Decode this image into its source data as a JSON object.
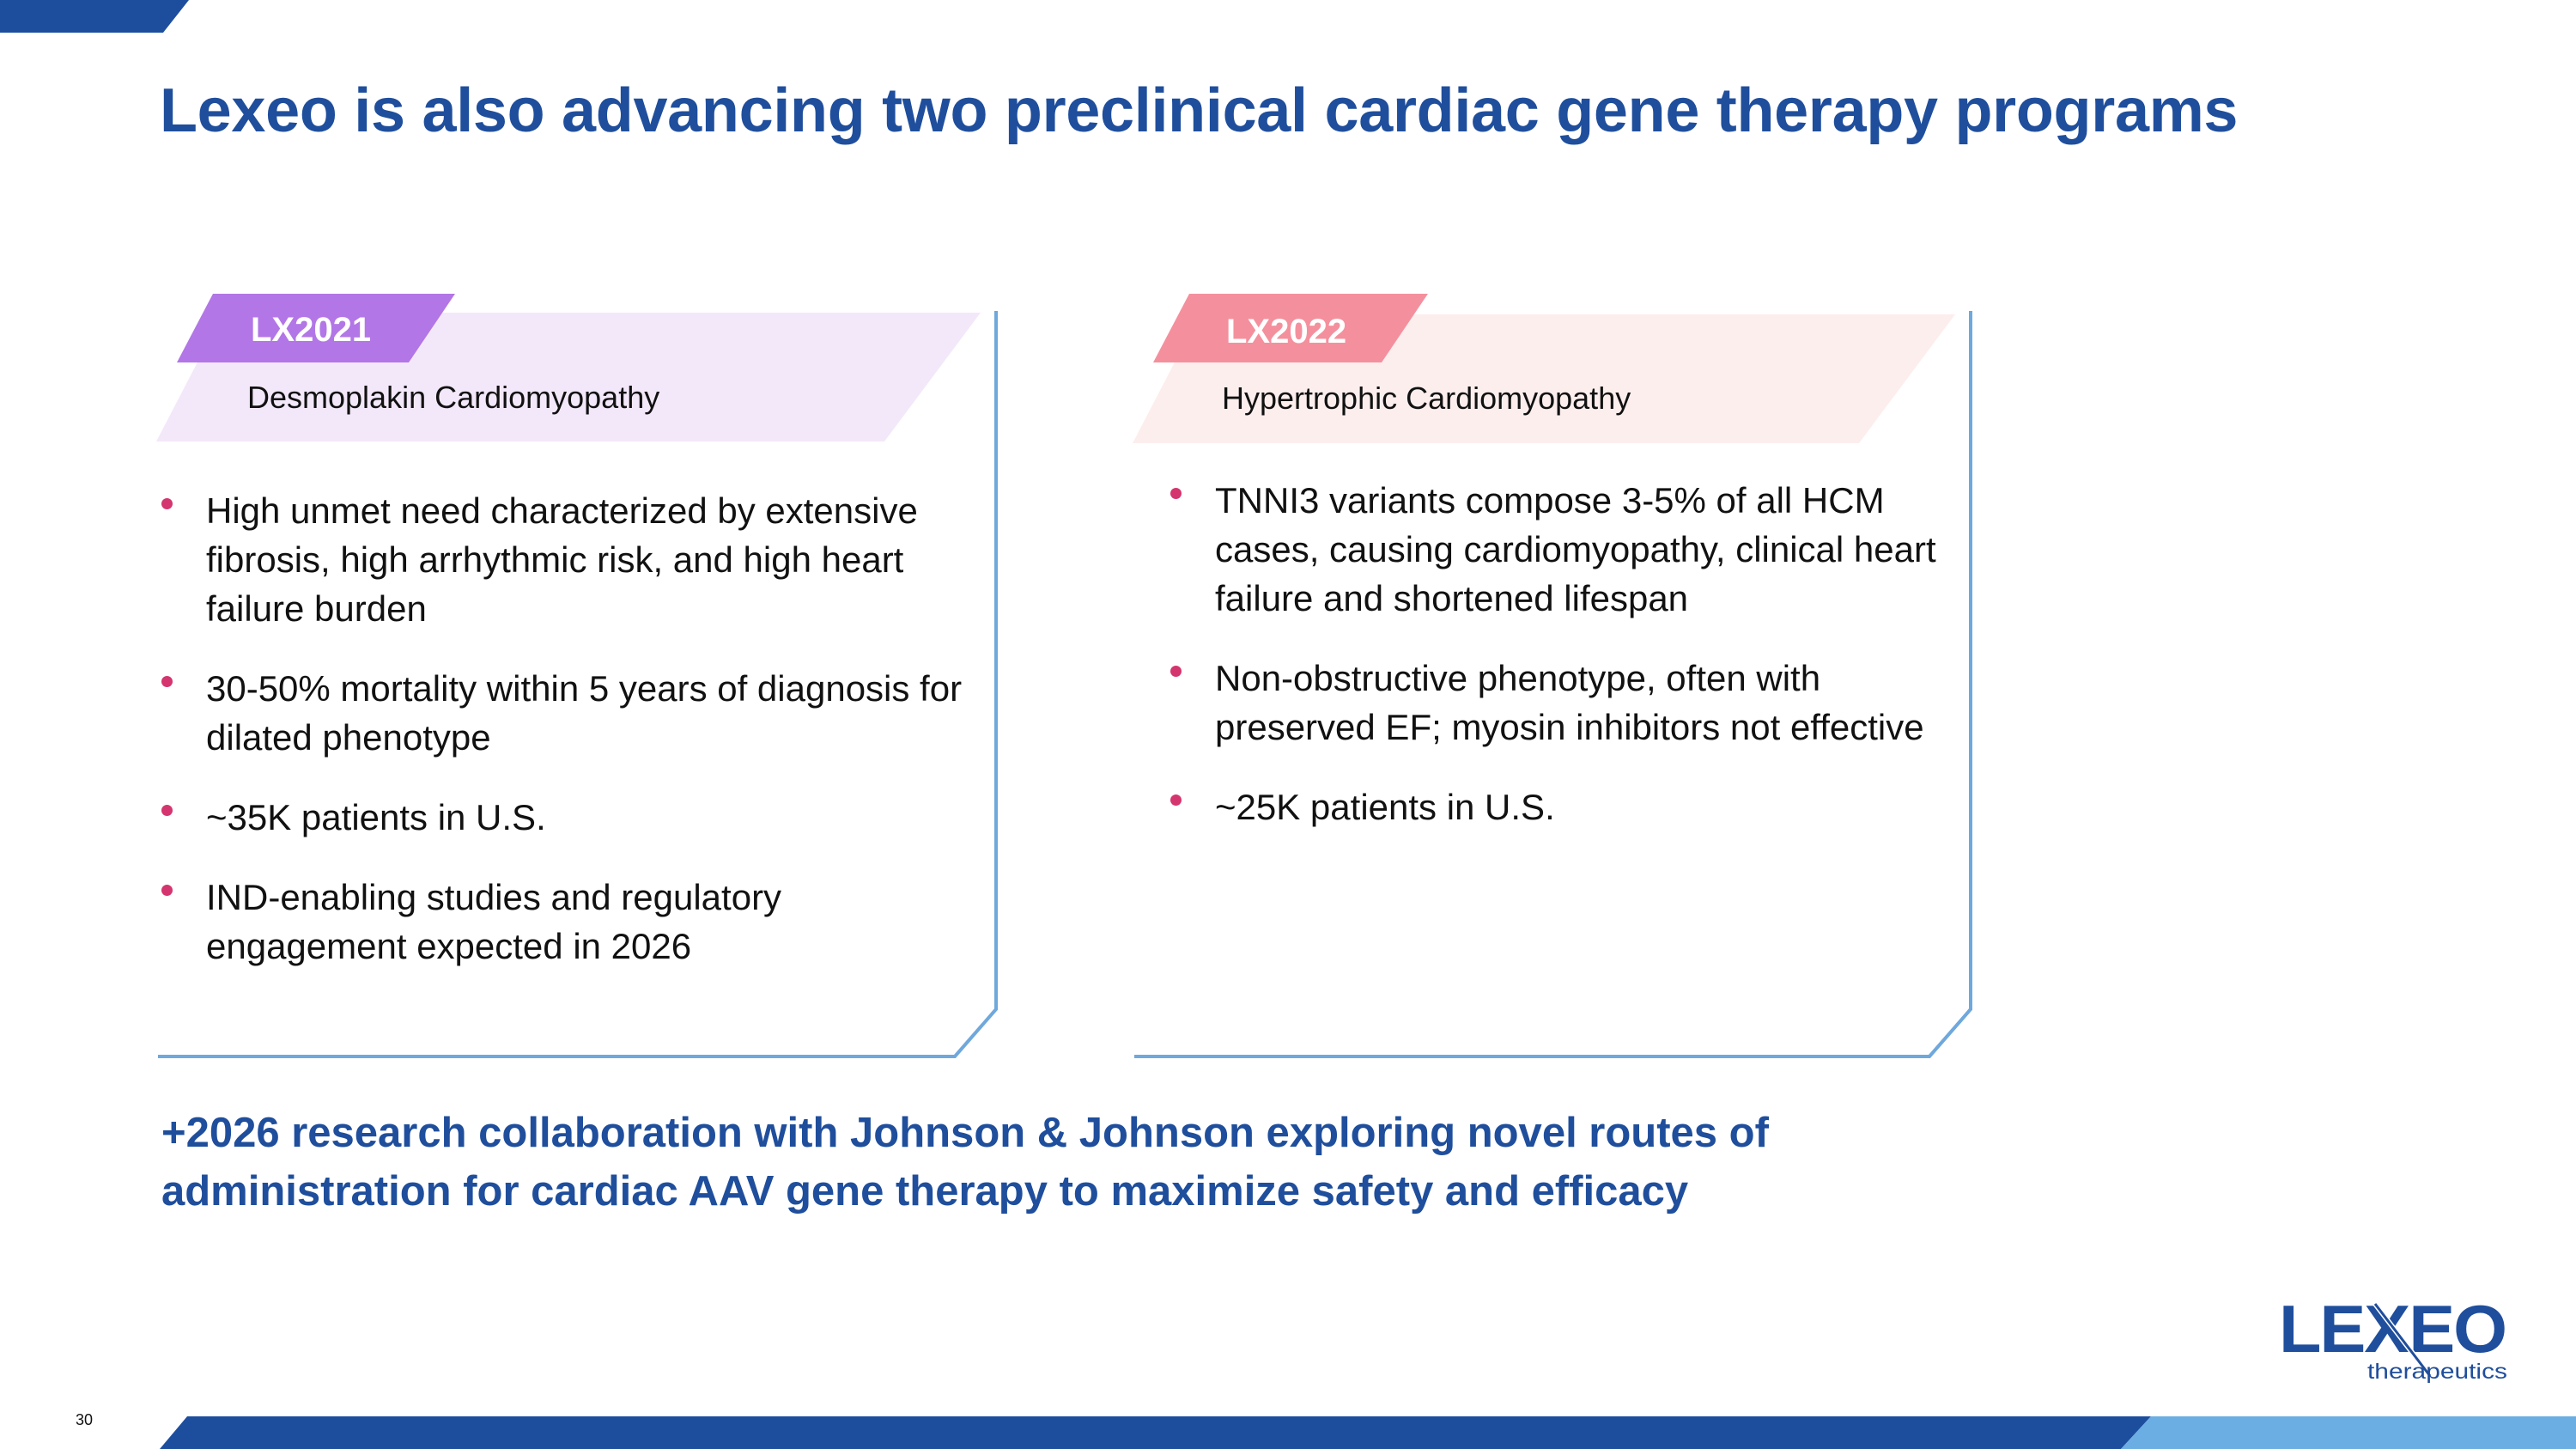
{
  "slide": {
    "title": "Lexeo is also advancing two preclinical cardiac gene therapy programs",
    "page_number": "30",
    "footer_note": "+2026 research collaboration with Johnson & Johnson exploring novel routes of administration for cardiac AAV gene therapy to maximize safety and efficacy"
  },
  "programs": [
    {
      "tag": "LX2021",
      "subtitle": "Desmoplakin Cardiomyopathy",
      "tag_color": "#b276e6",
      "band_color": "#f3e8f9",
      "bullets": [
        "High unmet need characterized by extensive fibrosis, high arrhythmic risk, and high heart failure burden",
        "30-50% mortality within 5 years of diagnosis for dilated phenotype",
        "~35K patients in U.S.",
        "IND-enabling studies and regulatory engagement expected in 2026"
      ]
    },
    {
      "tag": "LX2022",
      "subtitle": "Hypertrophic Cardiomyopathy",
      "tag_color": "#f4909d",
      "band_color": "#fdeeee",
      "bullets": [
        "TNNI3 variants compose 3-5% of all HCM cases, causing cardiomyopathy, clinical heart failure and shortened lifespan",
        "Non-obstructive phenotype, often with preserved EF; myosin inhibitors not effective",
        "~25K patients in U.S."
      ]
    }
  ],
  "logo": {
    "brand": "LEXEO",
    "sub": "therapeutics"
  },
  "colors": {
    "title_blue": "#1f4e9c",
    "frame_blue": "#6fa8dc",
    "bar_dark": "#1d4e9e",
    "bar_light": "#6aaee3",
    "bullet_pink": "#d4356e"
  }
}
